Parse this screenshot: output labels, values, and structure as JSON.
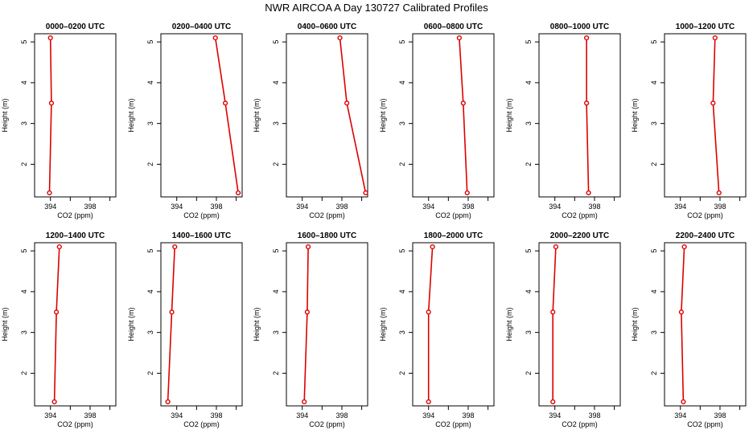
{
  "title": "NWR AIRCOA A  Day 130727  Calibrated Profiles",
  "chart_data": {
    "type": "line",
    "title": "NWR AIRCOA A  Day 130727  Calibrated Profiles",
    "xlabel": "CO2 (ppm)",
    "ylabel": "Height (m)",
    "xlim": [
      392.4,
      400.6
    ],
    "ylim": [
      1.2,
      5.2
    ],
    "x_tick_labels": [
      "394",
      "398"
    ],
    "y_tick_labels": [
      "2",
      "3",
      "4",
      "5"
    ],
    "series_color": "#dd0000",
    "panels": [
      {
        "name": "0000–0200 UTC",
        "heights": [
          1.3,
          3.5,
          5.1
        ],
        "co2": [
          393.9,
          394.1,
          394.0
        ]
      },
      {
        "name": "0200–0400 UTC",
        "heights": [
          1.3,
          3.5,
          5.1
        ],
        "co2": [
          400.2,
          398.9,
          397.9
        ]
      },
      {
        "name": "0400–0600 UTC",
        "heights": [
          1.3,
          3.5,
          5.1
        ],
        "co2": [
          400.4,
          398.5,
          397.8
        ]
      },
      {
        "name": "0600–0800 UTC",
        "heights": [
          1.3,
          3.5,
          5.1
        ],
        "co2": [
          397.9,
          397.5,
          397.1
        ]
      },
      {
        "name": "0800–1000 UTC",
        "heights": [
          1.3,
          3.5,
          5.1
        ],
        "co2": [
          397.4,
          397.2,
          397.2
        ]
      },
      {
        "name": "1000–1200 UTC",
        "heights": [
          1.3,
          3.5,
          5.1
        ],
        "co2": [
          397.9,
          397.3,
          397.5
        ]
      },
      {
        "name": "1200–1400 UTC",
        "heights": [
          1.3,
          3.5,
          5.1
        ],
        "co2": [
          394.4,
          394.6,
          394.9
        ]
      },
      {
        "name": "1400–1600 UTC",
        "heights": [
          1.3,
          3.5,
          5.1
        ],
        "co2": [
          393.1,
          393.5,
          393.8
        ]
      },
      {
        "name": "1600–1800 UTC",
        "heights": [
          1.3,
          3.5,
          5.1
        ],
        "co2": [
          394.2,
          394.5,
          394.6
        ]
      },
      {
        "name": "1800–2000 UTC",
        "heights": [
          1.3,
          3.5,
          5.1
        ],
        "co2": [
          394.0,
          394.0,
          394.4
        ]
      },
      {
        "name": "2000–2200 UTC",
        "heights": [
          1.3,
          3.5,
          5.1
        ],
        "co2": [
          393.8,
          393.8,
          394.1
        ]
      },
      {
        "name": "2200–2400 UTC",
        "heights": [
          1.3,
          3.5,
          5.1
        ],
        "co2": [
          394.3,
          394.1,
          394.4
        ]
      }
    ]
  }
}
